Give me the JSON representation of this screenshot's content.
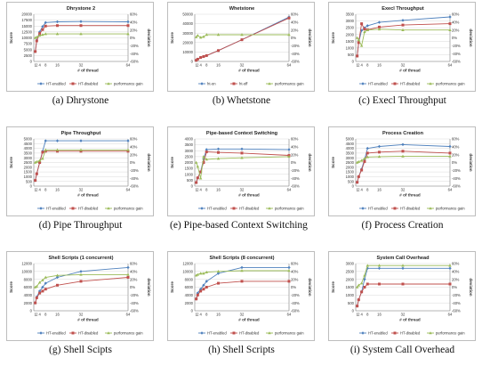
{
  "colors": {
    "ht_enabled": "#4f81bd",
    "ht_disabled": "#c0504d",
    "performance_gain": "#9bbb59",
    "axis": "#7f7f7f",
    "grid": "#d9d9d9"
  },
  "chart_data": [
    {
      "type": "line",
      "caption": "(a) Dhrystone",
      "title": "Dhrystone 2",
      "xlabel": "# of thread",
      "ylabel": "Score",
      "y2label": "deviation",
      "x": [
        1,
        2,
        4,
        6,
        8,
        16,
        32,
        64
      ],
      "xticks": [
        1,
        2,
        4,
        8,
        16,
        32,
        64
      ],
      "xtick_labels": [
        "1",
        "2",
        "4",
        "8",
        "16",
        "32",
        "64"
      ],
      "ylim": [
        0,
        20000
      ],
      "yticks": [
        0,
        2500,
        5000,
        7500,
        10000,
        12500,
        15000,
        17500,
        20000
      ],
      "ytick_labels": [
        "0",
        "2500",
        "5000",
        "7500",
        "10000",
        "12500",
        "15000",
        "17500",
        "20000"
      ],
      "y2lim": [
        -60,
        60
      ],
      "y2ticks": [
        -60,
        -40,
        -20,
        0,
        20,
        40,
        60
      ],
      "y2tick_labels": [
        "-60%",
        "-40%",
        "-20%",
        "0%",
        "20%",
        "40%",
        "60%"
      ],
      "series": [
        {
          "name": "HT-enabled",
          "key": "ht_enabled",
          "axis": "left",
          "values": [
            4200,
            9000,
            12500,
            14800,
            16500,
            16800,
            16900,
            16800
          ]
        },
        {
          "name": "HT-disabled",
          "key": "ht_disabled",
          "axis": "left",
          "values": [
            4200,
            8700,
            11800,
            13500,
            15000,
            15200,
            15200,
            15200
          ]
        },
        {
          "name": "performance gain",
          "key": "performance_gain",
          "axis": "right",
          "values": [
            0,
            2,
            6,
            8,
            10,
            10,
            10,
            10
          ]
        }
      ]
    },
    {
      "type": "line",
      "caption": "(b) Whetstone",
      "title": "Whetstone",
      "xlabel": "# of thread",
      "ylabel": "Score",
      "y2label": "deviation",
      "x": [
        1,
        2,
        4,
        6,
        8,
        16,
        32,
        64
      ],
      "xticks": [
        1,
        2,
        4,
        8,
        16,
        32,
        64
      ],
      "xtick_labels": [
        "1",
        "2",
        "4",
        "8",
        "16",
        "32",
        "64"
      ],
      "ylim": [
        0,
        50000
      ],
      "yticks": [
        0,
        10000,
        20000,
        30000,
        40000,
        50000
      ],
      "ytick_labels": [
        "0",
        "10000",
        "20000",
        "30000",
        "40000",
        "50000"
      ],
      "y2lim": [
        -60,
        60
      ],
      "y2ticks": [
        -60,
        -40,
        -20,
        0,
        20,
        40,
        60
      ],
      "y2tick_labels": [
        "-60%",
        "-40%",
        "-20%",
        "0%",
        "20%",
        "40%",
        "60%"
      ],
      "series": [
        {
          "name": "ht-on",
          "key": "ht_enabled",
          "axis": "left",
          "values": [
            1200,
            2400,
            4200,
            5200,
            6200,
            11500,
            23000,
            47000
          ]
        },
        {
          "name": "ht-off",
          "key": "ht_disabled",
          "axis": "left",
          "values": [
            1200,
            2400,
            4200,
            5200,
            6200,
            11500,
            23000,
            46000
          ]
        },
        {
          "name": "performance gain",
          "key": "performance_gain",
          "axis": "right",
          "values": [
            2,
            6,
            1,
            3,
            8,
            8,
            8,
            8
          ]
        }
      ]
    },
    {
      "type": "line",
      "caption": "(c) Execl Throughput",
      "title": "Execl Throughput",
      "xlabel": "# of thread",
      "ylabel": "Score",
      "y2label": "deviation",
      "x": [
        1,
        2,
        4,
        6,
        8,
        16,
        32,
        64
      ],
      "xticks": [
        1,
        2,
        4,
        8,
        16,
        32,
        64
      ],
      "xtick_labels": [
        "1",
        "2",
        "4",
        "8",
        "16",
        "32",
        "64"
      ],
      "ylim": [
        0,
        3500
      ],
      "yticks": [
        0,
        500,
        1000,
        1500,
        2000,
        2500,
        3000,
        3500
      ],
      "ytick_labels": [
        "0",
        "500",
        "1000",
        "1500",
        "2000",
        "2500",
        "3000",
        "3500"
      ],
      "y2lim": [
        -60,
        60
      ],
      "y2ticks": [
        -60,
        -40,
        -20,
        0,
        20,
        40,
        60
      ],
      "y2tick_labels": [
        "-60%",
        "-40%",
        "-20%",
        "0%",
        "20%",
        "40%",
        "60%"
      ],
      "series": [
        {
          "name": "HT-enabled",
          "key": "ht_enabled",
          "axis": "left",
          "values": [
            400,
            1400,
            2300,
            2500,
            2650,
            2900,
            3050,
            3300
          ]
        },
        {
          "name": "HT-disabled",
          "key": "ht_disabled",
          "axis": "left",
          "values": [
            400,
            1400,
            2800,
            2400,
            2350,
            2550,
            2700,
            2800
          ]
        },
        {
          "name": "performance gain",
          "key": "performance_gain",
          "axis": "right",
          "values": [
            0,
            -5,
            -20,
            15,
            20,
            22,
            20,
            20
          ]
        }
      ]
    },
    {
      "type": "line",
      "caption": "(d) Pipe Throughput",
      "title": "Pipe Throughput",
      "xlabel": "# of thread",
      "ylabel": "Score",
      "y2label": "deviation",
      "x": [
        1,
        2,
        4,
        6,
        8,
        16,
        32,
        64
      ],
      "xticks": [
        1,
        2,
        4,
        8,
        16,
        32,
        64
      ],
      "xtick_labels": [
        "1",
        "2",
        "4",
        "8",
        "16",
        "32",
        "64"
      ],
      "ylim": [
        0,
        5000
      ],
      "yticks": [
        0,
        500,
        1000,
        1500,
        2000,
        2500,
        3000,
        3500,
        4000,
        4500,
        5000
      ],
      "ytick_labels": [
        "0",
        "500",
        "1000",
        "1500",
        "2000",
        "2500",
        "3000",
        "3500",
        "4000",
        "4500",
        "5000"
      ],
      "y2lim": [
        -60,
        60
      ],
      "y2ticks": [
        -60,
        -40,
        -20,
        0,
        20,
        40,
        60
      ],
      "y2tick_labels": [
        "-60%",
        "-40%",
        "-20%",
        "0%",
        "20%",
        "40%",
        "60%"
      ],
      "series": [
        {
          "name": "HT-enabled",
          "key": "ht_enabled",
          "axis": "left",
          "values": [
            600,
            1300,
            2500,
            3700,
            4800,
            4800,
            4800,
            4800
          ]
        },
        {
          "name": "HT-disabled",
          "key": "ht_disabled",
          "axis": "left",
          "values": [
            600,
            1300,
            2500,
            3600,
            3700,
            3700,
            3700,
            3700
          ]
        },
        {
          "name": "performance gain",
          "key": "performance_gain",
          "axis": "right",
          "values": [
            0,
            2,
            5,
            10,
            32,
            32,
            32,
            32
          ]
        }
      ]
    },
    {
      "type": "line",
      "caption": "(e) Pipe-based Context Switching",
      "title": "Pipe-based Context Switching",
      "xlabel": "# of thread",
      "ylabel": "Score",
      "y2label": "deviation",
      "x": [
        1,
        2,
        4,
        6,
        8,
        16,
        32,
        64
      ],
      "xticks": [
        1,
        2,
        4,
        8,
        16,
        32,
        64
      ],
      "xtick_labels": [
        "1",
        "2",
        "4",
        "8",
        "16",
        "32",
        "64"
      ],
      "ylim": [
        0,
        4000
      ],
      "yticks": [
        0,
        500,
        1000,
        1500,
        2000,
        2500,
        3000,
        3500,
        4000
      ],
      "ytick_labels": [
        "0",
        "500",
        "1000",
        "1500",
        "2000",
        "2500",
        "3000",
        "3500",
        "4000"
      ],
      "y2lim": [
        -60,
        60
      ],
      "y2ticks": [
        -60,
        -40,
        -20,
        0,
        20,
        40,
        60
      ],
      "y2tick_labels": [
        "-60%",
        "-40%",
        "-20%",
        "0%",
        "20%",
        "40%",
        "60%"
      ],
      "series": [
        {
          "name": "HT-enabled",
          "key": "ht_enabled",
          "axis": "left",
          "values": [
            300,
            700,
            1200,
            2300,
            3100,
            3150,
            3150,
            3100
          ]
        },
        {
          "name": "HT-disabled",
          "key": "ht_disabled",
          "axis": "left",
          "values": [
            300,
            700,
            1200,
            2000,
            2900,
            2850,
            2800,
            2600
          ]
        },
        {
          "name": "performance gain",
          "key": "performance_gain",
          "axis": "right",
          "values": [
            0,
            -10,
            -40,
            15,
            8,
            10,
            12,
            15
          ]
        }
      ]
    },
    {
      "type": "line",
      "caption": "(f) Process Creation",
      "title": "Process Creation",
      "xlabel": "# of thread",
      "ylabel": "Score",
      "y2label": "deviation",
      "x": [
        1,
        2,
        4,
        6,
        8,
        16,
        32,
        64
      ],
      "xticks": [
        1,
        2,
        4,
        8,
        16,
        32,
        64
      ],
      "xtick_labels": [
        "1",
        "2",
        "4",
        "8",
        "16",
        "32",
        "64"
      ],
      "ylim": [
        0,
        5000
      ],
      "yticks": [
        0,
        500,
        1000,
        1500,
        2000,
        2500,
        3000,
        3500,
        4000,
        4500,
        5000
      ],
      "ytick_labels": [
        "0",
        "500",
        "1000",
        "1500",
        "2000",
        "2500",
        "3000",
        "3500",
        "4000",
        "4500",
        "5000"
      ],
      "y2lim": [
        -60,
        60
      ],
      "y2ticks": [
        -60,
        -40,
        -20,
        0,
        20,
        40,
        60
      ],
      "y2tick_labels": [
        "-60%",
        "-40%",
        "-20%",
        "0%",
        "20%",
        "40%",
        "60%"
      ],
      "series": [
        {
          "name": "HT-enabled",
          "key": "ht_enabled",
          "axis": "left",
          "values": [
            400,
            1000,
            1800,
            2800,
            4000,
            4200,
            4400,
            4200
          ]
        },
        {
          "name": "HT-disabled",
          "key": "ht_disabled",
          "axis": "left",
          "values": [
            400,
            1000,
            1700,
            2600,
            3500,
            3600,
            3700,
            3500
          ]
        },
        {
          "name": "performance gain",
          "key": "performance_gain",
          "axis": "right",
          "values": [
            0,
            2,
            5,
            10,
            14,
            15,
            16,
            16
          ]
        }
      ]
    },
    {
      "type": "line",
      "caption": "(g) Shell Scipts",
      "title": "Shell Scripts (1 concurrent)",
      "xlabel": "# of thread",
      "ylabel": "Score",
      "y2label": "deviation",
      "x": [
        1,
        2,
        4,
        6,
        8,
        16,
        32,
        64
      ],
      "xticks": [
        1,
        2,
        4,
        8,
        16,
        32,
        64
      ],
      "xtick_labels": [
        "1",
        "2",
        "4",
        "8",
        "16",
        "32",
        "64"
      ],
      "ylim": [
        0,
        12000
      ],
      "yticks": [
        0,
        2000,
        4000,
        6000,
        8000,
        10000,
        12000
      ],
      "ytick_labels": [
        "0",
        "2000",
        "4000",
        "6000",
        "8000",
        "10000",
        "12000"
      ],
      "y2lim": [
        -60,
        60
      ],
      "y2ticks": [
        -60,
        -40,
        -20,
        0,
        20,
        40,
        60
      ],
      "y2tick_labels": [
        "-60%",
        "-40%",
        "-20%",
        "0%",
        "20%",
        "40%",
        "60%"
      ],
      "series": [
        {
          "name": "HT-enabled",
          "key": "ht_enabled",
          "axis": "left",
          "values": [
            2000,
            3500,
            5000,
            6000,
            7000,
            8500,
            10000,
            11000
          ]
        },
        {
          "name": "HT-disabled",
          "key": "ht_disabled",
          "axis": "left",
          "values": [
            2000,
            3300,
            4500,
            5000,
            5500,
            6500,
            7500,
            8500
          ]
        },
        {
          "name": "performance gain",
          "key": "performance_gain",
          "axis": "right",
          "values": [
            0,
            2,
            12,
            18,
            25,
            30,
            32,
            32
          ]
        }
      ]
    },
    {
      "type": "line",
      "caption": "(h) Shell Scripts",
      "title": "Shell Scripts (8 concurrent)",
      "xlabel": "# of thread",
      "ylabel": "Score",
      "y2label": "deviation",
      "x": [
        1,
        2,
        4,
        6,
        8,
        16,
        32,
        64
      ],
      "xticks": [
        1,
        2,
        4,
        8,
        16,
        32,
        64
      ],
      "xtick_labels": [
        "1",
        "2",
        "4",
        "8",
        "16",
        "32",
        "64"
      ],
      "ylim": [
        0,
        12000
      ],
      "yticks": [
        0,
        2000,
        4000,
        6000,
        8000,
        10000,
        12000
      ],
      "ytick_labels": [
        "0",
        "2000",
        "4000",
        "6000",
        "8000",
        "10000",
        "12000"
      ],
      "y2lim": [
        -60,
        60
      ],
      "y2ticks": [
        -60,
        -40,
        -20,
        0,
        20,
        40,
        60
      ],
      "y2tick_labels": [
        "-60%",
        "-40%",
        "-20%",
        "0%",
        "20%",
        "40%",
        "60%"
      ],
      "series": [
        {
          "name": "HT-enabled",
          "key": "ht_enabled",
          "axis": "left",
          "values": [
            3000,
            4500,
            5500,
            6500,
            7500,
            9500,
            11000,
            11000
          ]
        },
        {
          "name": "HT-disabled",
          "key": "ht_disabled",
          "axis": "left",
          "values": [
            3000,
            4000,
            5000,
            5500,
            6000,
            7000,
            7500,
            7500
          ]
        },
        {
          "name": "performance gain",
          "key": "performance_gain",
          "axis": "right",
          "values": [
            30,
            32,
            35,
            35,
            38,
            40,
            42,
            42
          ]
        }
      ]
    },
    {
      "type": "line",
      "caption": "(i) System Call Overhead",
      "title": "System Call Overhead",
      "xlabel": "# of thread",
      "ylabel": "Score",
      "y2label": "deviation",
      "x": [
        1,
        2,
        4,
        6,
        8,
        16,
        32,
        64
      ],
      "xticks": [
        1,
        2,
        4,
        8,
        16,
        32,
        64
      ],
      "xtick_labels": [
        "1",
        "2",
        "4",
        "8",
        "16",
        "32",
        "64"
      ],
      "ylim": [
        0,
        3000
      ],
      "yticks": [
        0,
        500,
        1000,
        1500,
        2000,
        2500,
        3000
      ],
      "ytick_labels": [
        "0",
        "500",
        "1000",
        "1500",
        "2000",
        "2500",
        "3000"
      ],
      "y2lim": [
        -60,
        60
      ],
      "y2ticks": [
        -60,
        -40,
        -20,
        0,
        20,
        40,
        60
      ],
      "y2tick_labels": [
        "-60%",
        "-40%",
        "-20%",
        "0%",
        "20%",
        "40%",
        "60%"
      ],
      "series": [
        {
          "name": "HT-enabled",
          "key": "ht_enabled",
          "axis": "left",
          "values": [
            300,
            700,
            1200,
            2000,
            2700,
            2700,
            2700,
            2700
          ]
        },
        {
          "name": "HT-disabled",
          "key": "ht_disabled",
          "axis": "left",
          "values": [
            300,
            700,
            1200,
            1500,
            1700,
            1700,
            1700,
            1700
          ]
        },
        {
          "name": "performance gain",
          "key": "performance_gain",
          "axis": "right",
          "values": [
            0,
            5,
            10,
            30,
            55,
            55,
            55,
            55
          ]
        }
      ]
    }
  ]
}
